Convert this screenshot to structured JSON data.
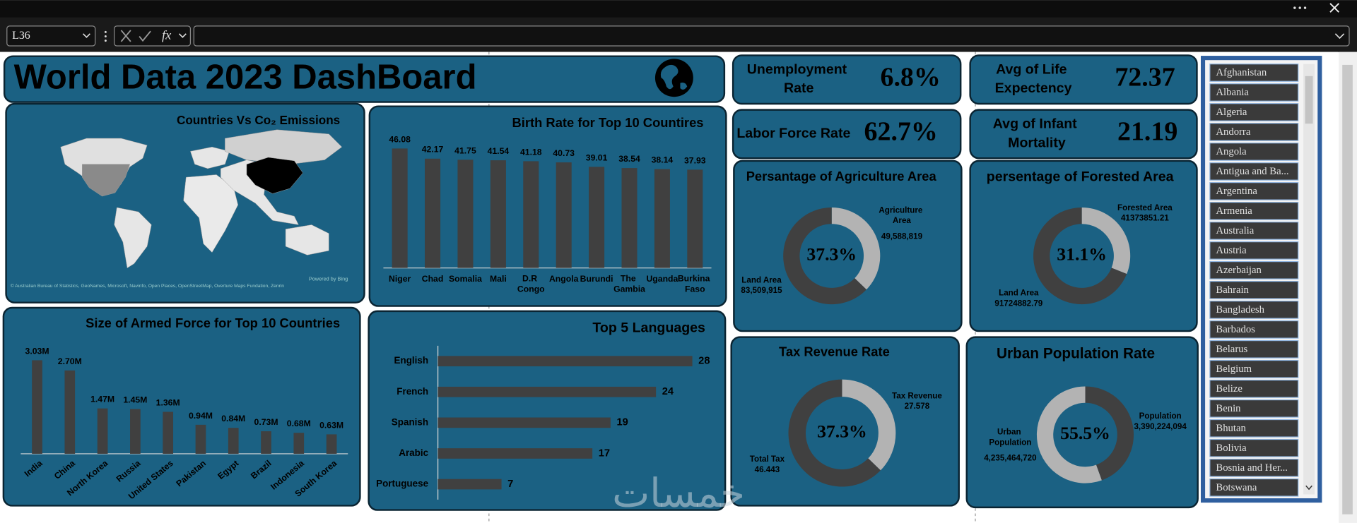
{
  "window": {
    "name_box": "L36",
    "fx": "fx"
  },
  "dashboard_title": "World Data 2023 DashBoard",
  "kpis": [
    {
      "label": "Unemployment Rate",
      "value": "6.8%"
    },
    {
      "label": "Avg of Life Expectency",
      "value": "72.37"
    },
    {
      "label": "Labor Force Rate",
      "value": "62.7%"
    },
    {
      "label": "Avg of Infant Mortality",
      "value": "21.19"
    }
  ],
  "chart_data": [
    {
      "type": "map",
      "title": "Countries Vs Co₂ Emissions",
      "attribution": "© Australian Bureau of Statistics, GeoNames, Microsoft, Navinfo, Open Places, OpenStreetMap, Overture Maps Fundation, Zenrin",
      "credit": "Powered by Bing"
    },
    {
      "type": "bar",
      "title": "Birth Rate for Top 10 Countires",
      "categories": [
        "Niger",
        "Chad",
        "Somalia",
        "Mali",
        "D.R Congo",
        "Angola",
        "Burundi",
        "The Gambia",
        "Uganda",
        "Burkina Faso"
      ],
      "values": [
        46.08,
        42.17,
        41.75,
        41.54,
        41.18,
        40.73,
        39.01,
        38.54,
        38.14,
        37.93
      ],
      "color": "#404040",
      "ylim": [
        0,
        50
      ]
    },
    {
      "type": "bar",
      "title": "Size of Armed Force for Top 10 Countries",
      "categories": [
        "India",
        "China",
        "North Korea",
        "Russia",
        "United States",
        "Pakistan",
        "Egypt",
        "Brazil",
        "Indonesia",
        "South Korea"
      ],
      "values": [
        3030000,
        2700000,
        1470000,
        1450000,
        1360000,
        940000,
        840000,
        730000,
        680000,
        630000
      ],
      "value_labels": [
        "3.03M",
        "2.70M",
        "1.47M",
        "1.45M",
        "1.36M",
        "0.94M",
        "0.84M",
        "0.73M",
        "0.68M",
        "0.63M"
      ],
      "color": "#404040",
      "ylim": [
        0,
        3500000
      ]
    },
    {
      "type": "hbar",
      "title": "Top 5 Languages",
      "categories": [
        "English",
        "French",
        "Spanish",
        "Arabic",
        "Portuguese"
      ],
      "values": [
        28,
        24,
        19,
        17,
        7
      ],
      "color": "#404040",
      "xlim": [
        0,
        30
      ]
    },
    {
      "type": "pie",
      "title": "Persantage of Agriculture Area",
      "center_label": "37.3%",
      "categories": [
        "Agriculture Area",
        "Land Area"
      ],
      "values": [
        49588819,
        83509915
      ],
      "value_labels": [
        "49,588,819",
        "83,509,915"
      ],
      "colors": [
        "#b3b3b3",
        "#404040"
      ]
    },
    {
      "type": "pie",
      "title": "persentage of Forested Area",
      "center_label": "31.1%",
      "categories": [
        "Forested Area",
        "Land Area"
      ],
      "values": [
        41373851.21,
        91724882.79
      ],
      "colors": [
        "#b3b3b3",
        "#404040"
      ]
    },
    {
      "type": "pie",
      "title": "Tax Revenue Rate",
      "center_label": "37.3%",
      "categories": [
        "Tax Revenue",
        "Total Tax"
      ],
      "values": [
        27.578,
        46.443
      ],
      "colors": [
        "#b3b3b3",
        "#404040"
      ]
    },
    {
      "type": "pie",
      "title": "Urban Population Rate",
      "center_label": "55.5%",
      "categories": [
        "Population",
        "Urban Population"
      ],
      "values": [
        3390224094,
        4235464720
      ],
      "value_labels": [
        "3,390,224,094",
        "4,235,464,720"
      ],
      "colors": [
        "#404040",
        "#b3b3b3"
      ]
    }
  ],
  "slicer": {
    "items": [
      "Afghanistan",
      "Albania",
      "Algeria",
      "Andorra",
      "Angola",
      "Antigua and Ba...",
      "Argentina",
      "Armenia",
      "Australia",
      "Austria",
      "Azerbaijan",
      "Bahrain",
      "Bangladesh",
      "Barbados",
      "Belarus",
      "Belgium",
      "Belize",
      "Benin",
      "Bhutan",
      "Bolivia",
      "Bosnia and Her...",
      "Botswana"
    ]
  },
  "watermark": "خمسات"
}
